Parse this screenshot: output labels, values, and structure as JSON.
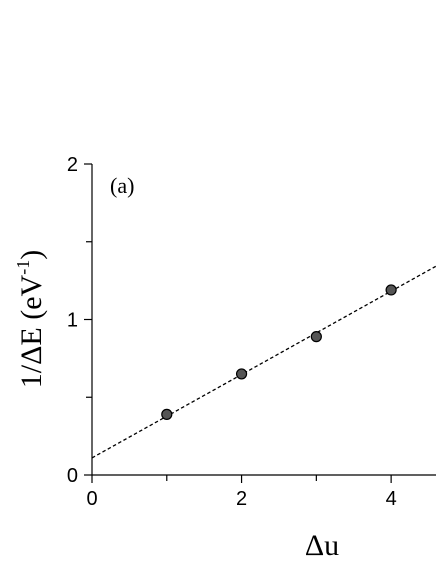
{
  "chart_data": {
    "type": "scatter",
    "panel_label": "(a)",
    "xlabel": "Δu",
    "ylabel": {
      "main": "1/ΔE (eV",
      "sup": "-1",
      "close": ")"
    },
    "xlim": [
      0,
      4.6
    ],
    "ylim": [
      0,
      2
    ],
    "x_ticks_major": [
      0,
      2,
      4
    ],
    "x_ticks_minor": [
      1,
      3
    ],
    "y_ticks_major": [
      0,
      1,
      2
    ],
    "y_ticks_minor": [
      0.5,
      1.5
    ],
    "x": [
      1,
      2,
      3,
      4
    ],
    "y": [
      0.39,
      0.65,
      0.89,
      1.19
    ],
    "fit_line": {
      "style": "dashed",
      "intercept": 0.11,
      "slope": 0.268
    },
    "grid": false,
    "legend": "none"
  }
}
